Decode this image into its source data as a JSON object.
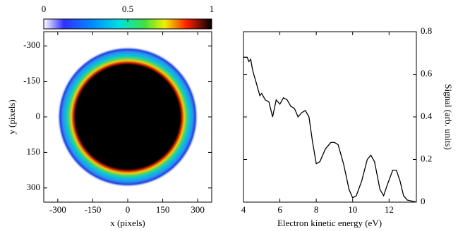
{
  "chart_data": [
    {
      "type": "image",
      "xlabel": "x (pixels)",
      "ylabel": "y (pixels)",
      "xlim": [
        -360,
        360
      ],
      "ylim": [
        -360,
        360
      ],
      "xticks": [
        -300,
        -150,
        0,
        150,
        300
      ],
      "yticks": [
        -300,
        -150,
        0,
        150,
        300
      ],
      "colorbar_lim": [
        0,
        1
      ],
      "colorbar_ticks": [
        0,
        0.5,
        1
      ]
    },
    {
      "type": "line",
      "xlabel": "Electron kinetic energy (eV)",
      "ylabel": "Signal (arb. units)",
      "xlim": [
        4,
        13.5
      ],
      "xticks": [
        4,
        6,
        8,
        10,
        12
      ],
      "y2lim": [
        0,
        0.8
      ],
      "y2ticks": [
        0,
        0.2,
        0.4,
        0.6,
        0.8
      ],
      "color": "#000000",
      "x": [
        4.0,
        4.2,
        4.3,
        4.4,
        4.5,
        4.7,
        4.9,
        5.0,
        5.2,
        5.4,
        5.6,
        5.8,
        6.0,
        6.2,
        6.4,
        6.6,
        6.8,
        7.0,
        7.2,
        7.4,
        7.6,
        7.8,
        8.0,
        8.2,
        8.5,
        8.8,
        9.0,
        9.2,
        9.5,
        9.8,
        10.0,
        10.2,
        10.5,
        10.8,
        11.0,
        11.2,
        11.5,
        11.7,
        11.9,
        12.2,
        12.4,
        12.6,
        12.8,
        13.0,
        13.5
      ],
      "values": [
        0.68,
        0.68,
        0.66,
        0.67,
        0.62,
        0.56,
        0.5,
        0.51,
        0.48,
        0.47,
        0.4,
        0.48,
        0.46,
        0.49,
        0.48,
        0.45,
        0.44,
        0.4,
        0.42,
        0.43,
        0.4,
        0.28,
        0.18,
        0.19,
        0.25,
        0.28,
        0.28,
        0.27,
        0.18,
        0.06,
        0.02,
        0.03,
        0.1,
        0.2,
        0.22,
        0.19,
        0.06,
        0.03,
        0.08,
        0.15,
        0.15,
        0.1,
        0.03,
        0.01,
        0.0
      ]
    }
  ]
}
